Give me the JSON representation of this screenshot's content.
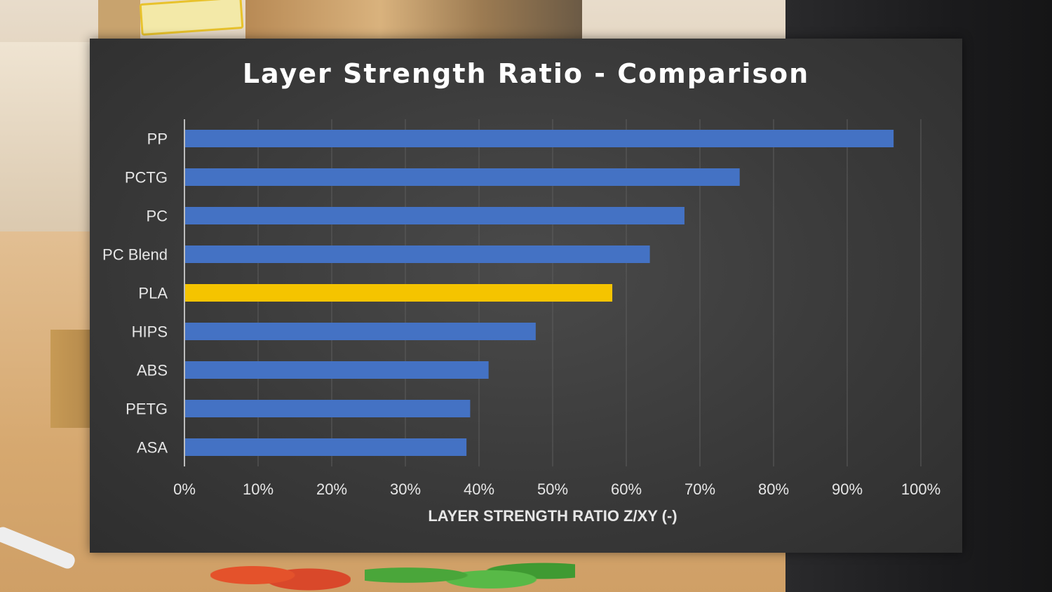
{
  "chart_data": {
    "type": "bar",
    "orientation": "horizontal",
    "title": "Layer Strength Ratio - Comparison",
    "xlabel": "LAYER STRENGTH RATIO Z/XY (-)",
    "ylabel": "",
    "categories": [
      "PP",
      "PCTG",
      "PC",
      "PC Blend",
      "PLA",
      "HIPS",
      "ABS",
      "PETG",
      "ASA"
    ],
    "values": [
      96.3,
      75.4,
      67.9,
      63.2,
      58.1,
      47.7,
      41.3,
      38.8,
      38.3
    ],
    "value_unit": "%",
    "xlim": [
      0,
      100
    ],
    "xticks": [
      "0%",
      "10%",
      "20%",
      "30%",
      "40%",
      "50%",
      "60%",
      "70%",
      "80%",
      "90%",
      "100%"
    ],
    "grid": "vertical",
    "legend": "none",
    "colors": {
      "default_bar": "#4472C4",
      "highlight_bar": "#F5C400",
      "highlight_category": "PLA",
      "panel_background": "#3a3a3a",
      "text": "#e6e6e6",
      "title_text": "#ffffff"
    }
  }
}
